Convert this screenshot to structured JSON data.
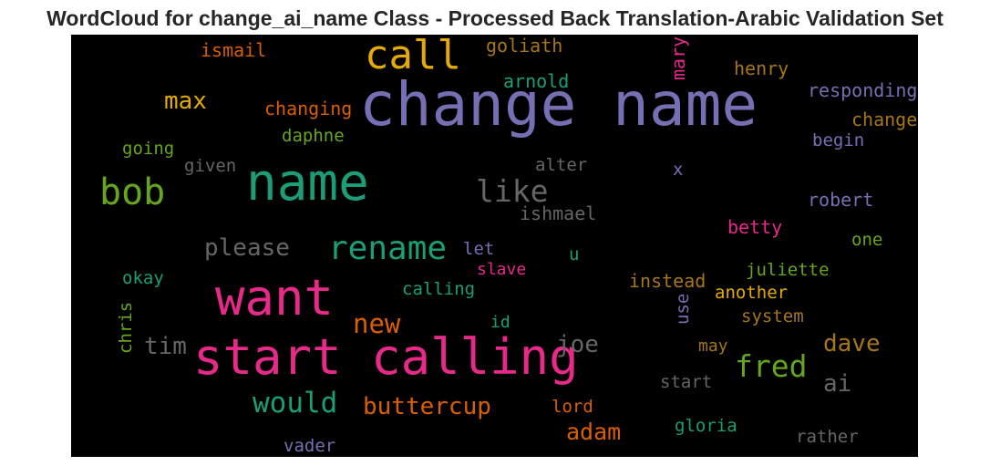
{
  "title": "WordCloud for change_ai_name Class - Processed Back Translation-Arabic Validation Set",
  "words": [
    {
      "text": "change name",
      "color": "#7570b3"
    },
    {
      "text": "call",
      "color": "#e6ab02"
    },
    {
      "text": "name",
      "color": "#1b9e77"
    },
    {
      "text": "bob",
      "color": "#66a61e"
    },
    {
      "text": "want",
      "color": "#e7298a"
    },
    {
      "text": "start calling",
      "color": "#e7298a"
    },
    {
      "text": "rename",
      "color": "#1b9e77"
    },
    {
      "text": "like",
      "color": "#666666"
    },
    {
      "text": "fred",
      "color": "#66a61e"
    },
    {
      "text": "would",
      "color": "#1b9e77"
    },
    {
      "text": "buttercup",
      "color": "#d95f02"
    },
    {
      "text": "new",
      "color": "#d95f02"
    },
    {
      "text": "please",
      "color": "#666666"
    },
    {
      "text": "max",
      "color": "#e6ab02"
    },
    {
      "text": "tim",
      "color": "#666666"
    },
    {
      "text": "joe",
      "color": "#666666"
    },
    {
      "text": "dave",
      "color": "#a6761d"
    },
    {
      "text": "adam",
      "color": "#d95f02"
    },
    {
      "text": "ai",
      "color": "#666666"
    },
    {
      "text": "ismail",
      "color": "#d95f02"
    },
    {
      "text": "goliath",
      "color": "#a6761d"
    },
    {
      "text": "mary",
      "color": "#e7298a"
    },
    {
      "text": "henry",
      "color": "#a6761d"
    },
    {
      "text": "arnold",
      "color": "#1b9e77"
    },
    {
      "text": "responding",
      "color": "#7570b3"
    },
    {
      "text": "changing",
      "color": "#d95f02"
    },
    {
      "text": "change",
      "color": "#a6761d"
    },
    {
      "text": "daphne",
      "color": "#66a61e"
    },
    {
      "text": "begin",
      "color": "#7570b3"
    },
    {
      "text": "going",
      "color": "#66a61e"
    },
    {
      "text": "given",
      "color": "#666666"
    },
    {
      "text": "alter",
      "color": "#666666"
    },
    {
      "text": "x",
      "color": "#7570b3"
    },
    {
      "text": "robert",
      "color": "#7570b3"
    },
    {
      "text": "ishmael",
      "color": "#666666"
    },
    {
      "text": "betty",
      "color": "#e7298a"
    },
    {
      "text": "one",
      "color": "#66a61e"
    },
    {
      "text": "let",
      "color": "#7570b3"
    },
    {
      "text": "u",
      "color": "#1b9e77"
    },
    {
      "text": "slave",
      "color": "#e7298a"
    },
    {
      "text": "okay",
      "color": "#1b9e77"
    },
    {
      "text": "instead",
      "color": "#a6761d"
    },
    {
      "text": "juliette",
      "color": "#66a61e"
    },
    {
      "text": "calling",
      "color": "#1b9e77"
    },
    {
      "text": "use",
      "color": "#7570b3"
    },
    {
      "text": "another",
      "color": "#e6ab02"
    },
    {
      "text": "chris",
      "color": "#66a61e"
    },
    {
      "text": "id",
      "color": "#1b9e77"
    },
    {
      "text": "system",
      "color": "#a6761d"
    },
    {
      "text": "may",
      "color": "#a6761d"
    },
    {
      "text": "start",
      "color": "#666666"
    },
    {
      "text": "lord",
      "color": "#d95f02"
    },
    {
      "text": "gloria",
      "color": "#1b9e77"
    },
    {
      "text": "vader",
      "color": "#7570b3"
    },
    {
      "text": "rather",
      "color": "#666666"
    }
  ]
}
